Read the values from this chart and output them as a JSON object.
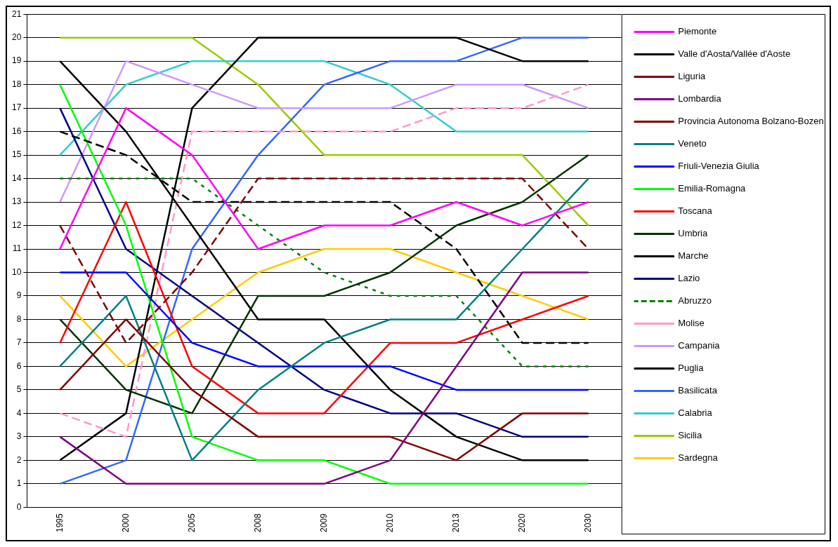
{
  "chart_data": {
    "type": "line",
    "categories": [
      "1995",
      "2000",
      "2005",
      "2008",
      "2009",
      "2010",
      "2013",
      "2020",
      "2030"
    ],
    "ylim": [
      0,
      21
    ],
    "yticks": [
      0,
      1,
      2,
      3,
      4,
      5,
      6,
      7,
      8,
      9,
      10,
      11,
      12,
      13,
      14,
      15,
      16,
      17,
      18,
      19,
      20,
      21
    ],
    "grid": "y",
    "legend": "right",
    "marker": "none",
    "series": [
      {
        "name": "Piemonte",
        "color": "#ff00ff",
        "values": [
          11,
          17,
          15,
          11,
          12,
          12,
          13,
          12,
          13
        ]
      },
      {
        "name": "Valle d'Aosta/Vallée d'Aoste",
        "color": "#000000",
        "line_style": "dashed",
        "values": [
          16,
          15,
          13,
          13,
          13,
          13,
          11,
          7,
          7
        ]
      },
      {
        "name": "Liguria",
        "color": "#800000",
        "line_style": "dashed",
        "values": [
          12,
          7,
          10,
          14,
          14,
          14,
          14,
          14,
          11
        ]
      },
      {
        "name": "Lombardia",
        "color": "#800080",
        "values": [
          3,
          1,
          1,
          1,
          1,
          2,
          6,
          10,
          10
        ]
      },
      {
        "name": "Provincia Autonoma Bolzano-Bozen",
        "color": "#800000",
        "values": [
          5,
          8,
          5,
          3,
          3,
          3,
          2,
          4,
          4
        ]
      },
      {
        "name": "Veneto",
        "color": "#008080",
        "values": [
          6,
          9,
          2,
          5,
          7,
          8,
          8,
          11,
          14
        ]
      },
      {
        "name": "Friuli-Venezia Giulia",
        "color": "#0000ff",
        "values": [
          10,
          10,
          7,
          6,
          6,
          6,
          5,
          5,
          5
        ]
      },
      {
        "name": "Emilia-Romagna",
        "color": "#00ff00",
        "values": [
          18,
          12,
          3,
          2,
          2,
          1,
          1,
          1,
          1
        ]
      },
      {
        "name": "Toscana",
        "color": "#ff0000",
        "values": [
          7,
          13,
          6,
          4,
          4,
          7,
          7,
          8,
          9
        ]
      },
      {
        "name": "Umbria",
        "color": "#003300",
        "values": [
          8,
          5,
          4,
          9,
          9,
          10,
          12,
          13,
          15
        ]
      },
      {
        "name": "Marche",
        "color": "#000000",
        "values": [
          19,
          16,
          12,
          8,
          8,
          5,
          3,
          2,
          2
        ]
      },
      {
        "name": "Lazio",
        "color": "#000080",
        "values": [
          17,
          11,
          9,
          7,
          5,
          4,
          4,
          3,
          3
        ]
      },
      {
        "name": "Abruzzo",
        "color": "#008000",
        "line_style": "dotted",
        "values": [
          14,
          14,
          14,
          12,
          10,
          9,
          9,
          6,
          6
        ]
      },
      {
        "name": "Molise",
        "color": "#ff99cc",
        "line_style": "dashed",
        "values": [
          4,
          3,
          16,
          16,
          16,
          16,
          17,
          17,
          18
        ]
      },
      {
        "name": "Campania",
        "color": "#cc99ff",
        "values": [
          13,
          19,
          18,
          17,
          17,
          17,
          18,
          18,
          17
        ]
      },
      {
        "name": "Puglia",
        "color": "#000000",
        "values": [
          2,
          4,
          17,
          20,
          20,
          20,
          20,
          19,
          19
        ]
      },
      {
        "name": "Basilicata",
        "color": "#3366ff",
        "values": [
          1,
          2,
          11,
          15,
          18,
          19,
          19,
          20,
          20
        ]
      },
      {
        "name": "Calabria",
        "color": "#33cccc",
        "values": [
          15,
          18,
          19,
          19,
          19,
          18,
          16,
          16,
          16
        ]
      },
      {
        "name": "Sicilia",
        "color": "#99cc00",
        "values": [
          20,
          20,
          20,
          18,
          15,
          15,
          15,
          15,
          12
        ]
      },
      {
        "name": "Sardegna",
        "color": "#ffcc00",
        "values": [
          9,
          6,
          8,
          10,
          11,
          11,
          10,
          9,
          8
        ]
      }
    ]
  }
}
